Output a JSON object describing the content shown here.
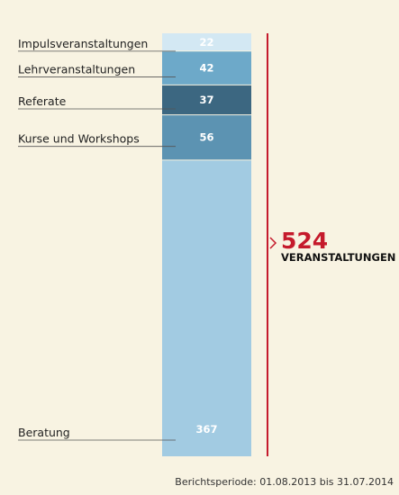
{
  "chart_data": {
    "type": "bar",
    "stacked": true,
    "categories": [
      "Impulsveranstaltungen",
      "Lehrveranstaltungen",
      "Referate",
      "Kurse und Workshops",
      "Beratung"
    ],
    "values": [
      22,
      42,
      37,
      56,
      367
    ],
    "colors": [
      "#d3e8f3",
      "#6da9c9",
      "#3c6781",
      "#5c93b2",
      "#a2cbe2"
    ],
    "label_colors": [
      "#ffffff",
      "#ffffff",
      "#ffffff",
      "#ffffff",
      "#ffffff"
    ],
    "total": {
      "value": "524",
      "label": "VERANSTALTUNGEN"
    },
    "accent_color": "#c51a2c",
    "legend": "none",
    "grid": false
  },
  "footnote": "Berichtsperiode: 01.08.2013 bis 31.07.2014"
}
